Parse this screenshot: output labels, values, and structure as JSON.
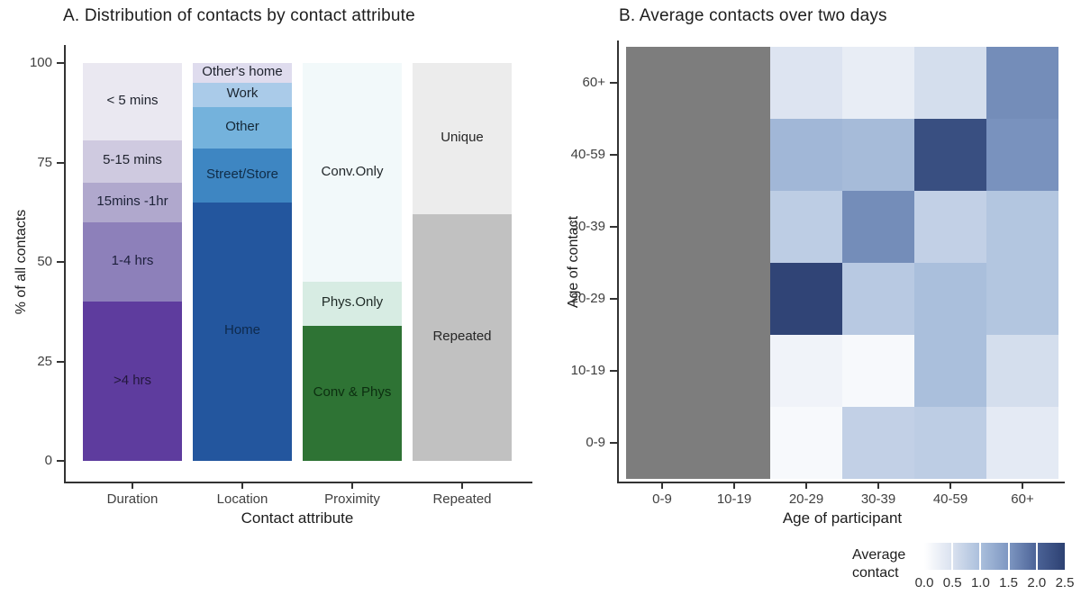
{
  "figure": {
    "background": "#ffffff",
    "axis_color": "#333333",
    "tick_text_color": "#404040"
  },
  "chart_data": [
    {
      "type": "bar",
      "variant": "stacked-percent",
      "title": "A. Distribution of contacts by contact attribute",
      "xlabel": "Contact attribute",
      "ylabel": "% of all contacts",
      "ylim": [
        0,
        100
      ],
      "yticks": [
        0,
        25,
        50,
        75,
        100
      ],
      "grid": false,
      "categories": [
        "Duration",
        "Location",
        "Proximity",
        "Repeated"
      ],
      "bars": [
        {
          "category": "Duration",
          "segments_bottom_to_top": [
            {
              "label": ">4 hrs",
              "value": 40,
              "color": "#5e3c9e",
              "label_color": "#23173d"
            },
            {
              "label": "1-4 hrs",
              "value": 20,
              "color": "#8d80ba",
              "label_color": "#1d1f3c"
            },
            {
              "label": "15mins -1hr",
              "value": 10,
              "color": "#b0a8cd",
              "label_color": "#1d2238"
            },
            {
              "label": "5-15 mins",
              "value": 10.5,
              "color": "#cfcae0",
              "label_color": "#20242f"
            },
            {
              "label": "< 5 mins",
              "value": 19.5,
              "color": "#eae8f1",
              "label_color": "#20242f"
            }
          ]
        },
        {
          "category": "Location",
          "segments_bottom_to_top": [
            {
              "label": "Home",
              "value": 65,
              "color": "#23569e",
              "label_color": "#0e2a4d"
            },
            {
              "label": "Street/Store",
              "value": 13.5,
              "color": "#3e86c2",
              "label_color": "#102c47"
            },
            {
              "label": "Other",
              "value": 10.5,
              "color": "#74b2dc",
              "label_color": "#142736"
            },
            {
              "label": "Work",
              "value": 6,
              "color": "#aacbe9",
              "label_color": "#1b2530"
            },
            {
              "label": "Other's home",
              "value": 5,
              "color": "#dfdcee",
              "label_color": "#20242f"
            }
          ]
        },
        {
          "category": "Proximity",
          "segments_bottom_to_top": [
            {
              "label": "Conv & Phys",
              "value": 34,
              "color": "#2e7334",
              "label_color": "#0c2e10"
            },
            {
              "label": "Phys.Only",
              "value": 11,
              "color": "#d7ece3",
              "label_color": "#1e2a26"
            },
            {
              "label": "Conv.Only",
              "value": 55,
              "color": "#f2f9fa",
              "label_color": "#22282b"
            }
          ]
        },
        {
          "category": "Repeated",
          "segments_bottom_to_top": [
            {
              "label": "Repeated",
              "value": 62,
              "color": "#c1c1c1",
              "label_color": "#262626"
            },
            {
              "label": "Unique",
              "value": 38,
              "color": "#ececec",
              "label_color": "#262626"
            }
          ]
        }
      ]
    },
    {
      "type": "heatmap",
      "title": "B. Average contacts over two days",
      "xlabel": "Age of participant",
      "ylabel": "Age of contact",
      "x_categories": [
        "0-9",
        "10-19",
        "20-29",
        "30-39",
        "40-59",
        "60+"
      ],
      "y_categories_top_to_bottom": [
        "60+",
        "40-59",
        "30-39",
        "20-29",
        "10-19",
        "0-9"
      ],
      "no_data_columns": [
        "0-9",
        "10-19"
      ],
      "no_data_color": "#7d7d7d",
      "rows_top_to_bottom": [
        {
          "y": "60+",
          "values": [
            null,
            null,
            0.45,
            0.3,
            0.55,
            1.6
          ]
        },
        {
          "y": "40-59",
          "values": [
            null,
            null,
            1.1,
            1.05,
            2.3,
            1.55
          ]
        },
        {
          "y": "30-39",
          "values": [
            null,
            null,
            0.8,
            1.6,
            0.75,
            0.9
          ]
        },
        {
          "y": "20-29",
          "values": [
            null,
            null,
            2.45,
            0.85,
            1.0,
            0.9
          ]
        },
        {
          "y": "10-19",
          "values": [
            null,
            null,
            0.2,
            0.1,
            1.0,
            0.55
          ]
        },
        {
          "y": "0-9",
          "values": [
            null,
            null,
            0.1,
            0.75,
            0.8,
            0.35
          ]
        }
      ],
      "legend": {
        "label": "Average contact",
        "range": [
          0,
          2.5
        ],
        "tick_labels": [
          "0.0",
          "0.5",
          "1.0",
          "1.5",
          "2.0",
          "2.5"
        ],
        "interior_tick_values": [
          0.5,
          1.0,
          1.5,
          2.0
        ],
        "gradient_stops": [
          [
            0.0,
            "#ffffff"
          ],
          [
            0.5,
            "#d9e1ef"
          ],
          [
            1.0,
            "#aabfdc"
          ],
          [
            1.5,
            "#7e97c2"
          ],
          [
            2.0,
            "#4c6397"
          ],
          [
            2.5,
            "#2d4172"
          ]
        ]
      }
    }
  ]
}
